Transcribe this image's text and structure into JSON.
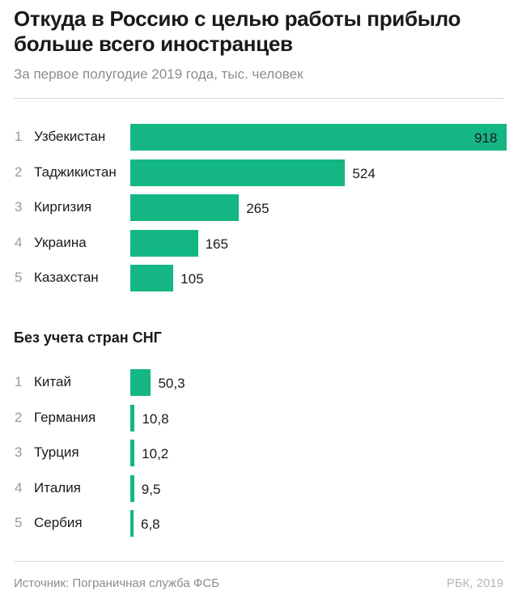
{
  "title": "Откуда в Россию с целью работы прибыло больше всего иностранцев",
  "subtitle": "За первое полугодие 2019 года, тыс. человек",
  "section2_title": "Без учета стран СНГ",
  "source": "Источник: Пограничная служба ФСБ",
  "credit": "РБК, 2019",
  "colors": {
    "bar": "#14b784",
    "text": "#1a1a1a",
    "muted": "#8c8c8c"
  },
  "chart_data": [
    {
      "type": "bar",
      "orientation": "horizontal",
      "title": "Откуда в Россию с целью работы прибыло больше всего иностранцев",
      "subtitle": "За первое полугодие 2019 года, тыс. человек",
      "ranks": [
        "1",
        "2",
        "3",
        "4",
        "5"
      ],
      "categories": [
        "Узбекистан",
        "Таджикистан",
        "Киргизия",
        "Украина",
        "Казахстан"
      ],
      "values": [
        918,
        524,
        265,
        165,
        105
      ],
      "labels": [
        "918",
        "524",
        "265",
        "165",
        "105"
      ],
      "xlim": [
        0,
        918
      ]
    },
    {
      "type": "bar",
      "orientation": "horizontal",
      "title": "Без учета стран СНГ",
      "ranks": [
        "1",
        "2",
        "3",
        "4",
        "5"
      ],
      "categories": [
        "Китай",
        "Германия",
        "Турция",
        "Италия",
        "Сербия"
      ],
      "values": [
        50.3,
        10.8,
        10.2,
        9.5,
        6.8
      ],
      "labels": [
        "50,3",
        "10,8",
        "10,2",
        "9,5",
        "6,8"
      ],
      "xlim": [
        0,
        918
      ]
    }
  ]
}
